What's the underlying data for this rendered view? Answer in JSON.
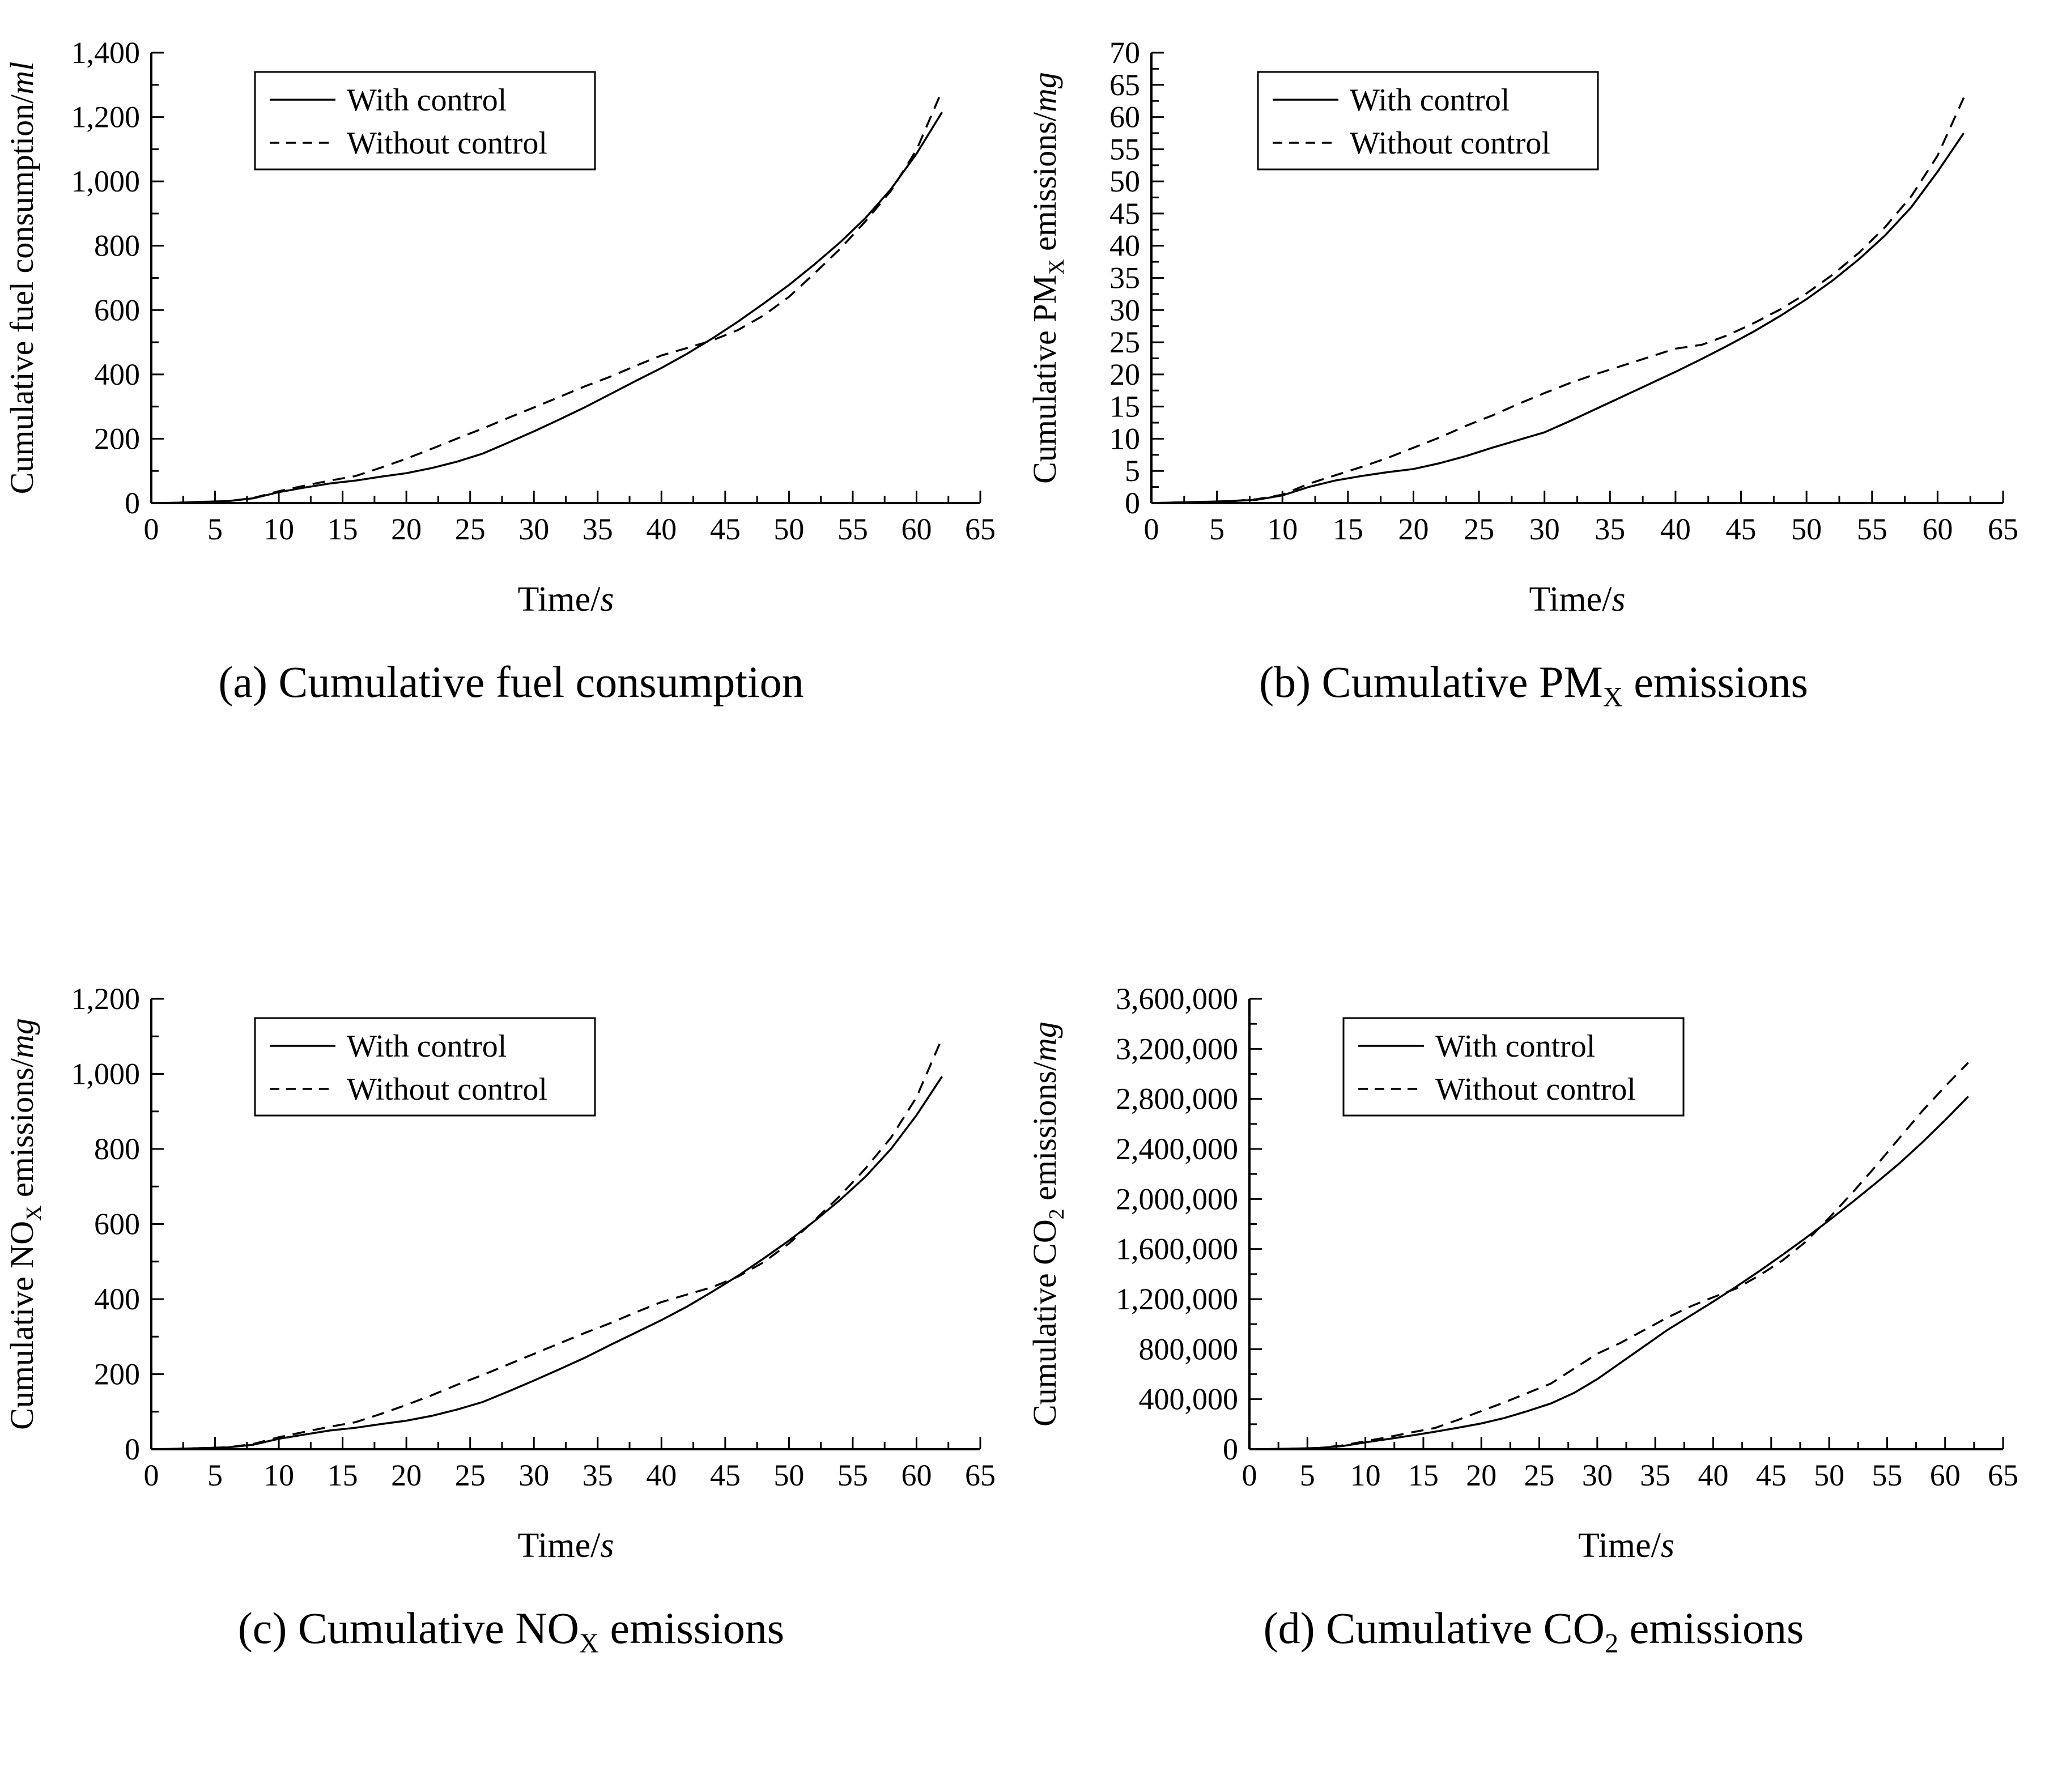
{
  "colors": {
    "line": "#000000",
    "background": "#ffffff"
  },
  "legend": {
    "with_control": "With control",
    "without_control": "Without control"
  },
  "chart_data": [
    {
      "id": "a",
      "type": "line",
      "caption": {
        "pre": "(a) Cumulative fuel consumption",
        "sub": "",
        "post": ""
      },
      "ylabel": {
        "pre": "Cumulative fuel consumption/",
        "sub": "",
        "post": "",
        "unit": "ml"
      },
      "xlabel": {
        "pre": "Time/",
        "unit": "s"
      },
      "xlim": [
        0,
        65
      ],
      "ylim": [
        0,
        1400
      ],
      "xticks": {
        "major_step": 5,
        "minor_step": 2.5,
        "labels": [
          "0",
          "5",
          "10",
          "15",
          "20",
          "25",
          "30",
          "35",
          "40",
          "45",
          "50",
          "55",
          "60",
          "65"
        ]
      },
      "yticks": {
        "major_step": 200,
        "minor_step": 100,
        "labels": [
          "0",
          "200",
          "400",
          "600",
          "800",
          "1,000",
          "1,200",
          "1,400"
        ]
      },
      "legend_position": "top-left-inside",
      "grid": false,
      "series": [
        {
          "name": "With control",
          "style": "solid",
          "x": [
            0,
            2,
            4,
            6,
            8,
            10,
            12,
            14,
            16,
            18,
            20,
            22,
            24,
            26,
            28,
            30,
            32,
            34,
            36,
            38,
            40,
            42,
            44,
            46,
            48,
            50,
            52,
            54,
            56,
            58,
            60,
            62
          ],
          "y": [
            0,
            1,
            4,
            6,
            15,
            34,
            48,
            61,
            70,
            82,
            93,
            109,
            129,
            154,
            188,
            223,
            260,
            298,
            339,
            380,
            420,
            464,
            512,
            564,
            620,
            678,
            742,
            810,
            886,
            976,
            1086,
            1215
          ]
        },
        {
          "name": "Without control",
          "style": "dashed",
          "x": [
            0,
            2,
            4,
            6,
            8,
            10,
            12,
            14,
            16,
            18,
            20,
            22,
            24,
            26,
            28,
            30,
            32,
            34,
            36,
            38,
            40,
            42,
            44,
            46,
            48,
            50,
            52,
            54,
            56,
            58,
            60,
            62
          ],
          "y": [
            0,
            1,
            4,
            6,
            16,
            37,
            54,
            70,
            84,
            110,
            138,
            169,
            201,
            232,
            265,
            297,
            330,
            363,
            393,
            427,
            459,
            482,
            506,
            538,
            583,
            641,
            714,
            790,
            876,
            971,
            1098,
            1282
          ]
        }
      ]
    },
    {
      "id": "b",
      "type": "line",
      "caption": {
        "pre": "(b) Cumulative PM",
        "sub": "X",
        "post": " emissions"
      },
      "ylabel": {
        "pre": "Cumulative PM",
        "sub": "X",
        "post": " emissions/",
        "unit": "mg"
      },
      "xlabel": {
        "pre": "Time/",
        "unit": "s"
      },
      "xlim": [
        0,
        65
      ],
      "ylim": [
        0,
        70
      ],
      "xticks": {
        "major_step": 5,
        "minor_step": 2.5,
        "labels": [
          "0",
          "5",
          "10",
          "15",
          "20",
          "25",
          "30",
          "35",
          "40",
          "45",
          "50",
          "55",
          "60",
          "65"
        ]
      },
      "yticks": {
        "major_step": 5,
        "minor_step": 2.5,
        "labels": [
          "0",
          "5",
          "10",
          "15",
          "20",
          "25",
          "30",
          "35",
          "40",
          "45",
          "50",
          "55",
          "60",
          "65",
          "70"
        ]
      },
      "legend_position": "top-left-inside",
      "grid": false,
      "series": [
        {
          "name": "With control",
          "style": "solid",
          "x": [
            0,
            2,
            4,
            6,
            8,
            10,
            12,
            14,
            16,
            18,
            20,
            22,
            24,
            26,
            28,
            30,
            32,
            34,
            36,
            38,
            40,
            42,
            44,
            46,
            48,
            50,
            52,
            54,
            56,
            58,
            60,
            62
          ],
          "y": [
            0,
            0.1,
            0.2,
            0.3,
            0.5,
            1.2,
            2.5,
            3.5,
            4.2,
            4.8,
            5.3,
            6.2,
            7.3,
            8.6,
            9.8,
            11.0,
            12.8,
            14.7,
            16.6,
            18.5,
            20.4,
            22.4,
            24.5,
            26.7,
            29.1,
            31.7,
            34.6,
            37.9,
            41.6,
            46.0,
            51.5,
            57.5
          ]
        },
        {
          "name": "Without control",
          "style": "dashed",
          "x": [
            0,
            2,
            4,
            6,
            8,
            10,
            12,
            14,
            16,
            18,
            20,
            22,
            24,
            26,
            28,
            30,
            32,
            34,
            36,
            38,
            40,
            42,
            44,
            46,
            48,
            50,
            52,
            54,
            56,
            58,
            60,
            62
          ],
          "y": [
            0,
            0.1,
            0.2,
            0.3,
            0.6,
            1.3,
            3.0,
            4.3,
            5.6,
            7.0,
            8.6,
            10.2,
            12.0,
            13.6,
            15.4,
            17.1,
            18.7,
            20.1,
            21.4,
            22.7,
            24.0,
            24.6,
            26.1,
            28.0,
            30.1,
            32.6,
            35.5,
            38.9,
            42.9,
            47.7,
            54.0,
            63.0
          ]
        }
      ]
    },
    {
      "id": "c",
      "type": "line",
      "caption": {
        "pre": "(c) Cumulative NO",
        "sub": "X",
        "post": " emissions"
      },
      "ylabel": {
        "pre": "Cumulative NO",
        "sub": "X",
        "post": " emissions/",
        "unit": "mg"
      },
      "xlabel": {
        "pre": "Time/",
        "unit": "s"
      },
      "xlim": [
        0,
        65
      ],
      "ylim": [
        0,
        1200
      ],
      "xticks": {
        "major_step": 5,
        "minor_step": 2.5,
        "labels": [
          "0",
          "5",
          "10",
          "15",
          "20",
          "25",
          "30",
          "35",
          "40",
          "45",
          "50",
          "55",
          "60",
          "65"
        ]
      },
      "yticks": {
        "major_step": 200,
        "minor_step": 100,
        "labels": [
          "0",
          "200",
          "400",
          "600",
          "800",
          "1,000",
          "1,200"
        ]
      },
      "legend_position": "top-left-inside",
      "grid": false,
      "series": [
        {
          "name": "With control",
          "style": "solid",
          "x": [
            0,
            2,
            4,
            6,
            8,
            10,
            12,
            14,
            16,
            18,
            20,
            22,
            24,
            26,
            28,
            30,
            32,
            34,
            36,
            38,
            40,
            42,
            44,
            46,
            48,
            50,
            52,
            54,
            56,
            58,
            60,
            62
          ],
          "y": [
            0,
            1,
            3,
            5,
            12,
            28,
            39,
            50,
            57,
            67,
            76,
            89,
            106,
            126,
            154,
            183,
            213,
            244,
            278,
            311,
            344,
            380,
            420,
            462,
            508,
            556,
            608,
            664,
            726,
            800,
            890,
            993
          ]
        },
        {
          "name": "Without control",
          "style": "dashed",
          "x": [
            0,
            2,
            4,
            6,
            8,
            10,
            12,
            14,
            16,
            18,
            20,
            22,
            24,
            26,
            28,
            30,
            32,
            34,
            36,
            38,
            40,
            42,
            44,
            46,
            48,
            50,
            52,
            54,
            56,
            58,
            60,
            62
          ],
          "y": [
            0,
            1,
            3,
            5,
            14,
            32,
            46,
            60,
            72,
            94,
            118,
            144,
            172,
            198,
            226,
            254,
            282,
            310,
            336,
            365,
            392,
            412,
            432,
            460,
            498,
            548,
            610,
            675,
            748,
            830,
            938,
            1095
          ]
        }
      ]
    },
    {
      "id": "d",
      "type": "line",
      "caption": {
        "pre": "(d) Cumulative CO",
        "sub": "2",
        "post": " emissions"
      },
      "ylabel": {
        "pre": "Cumulative CO",
        "sub": "2",
        "post": " emissions/",
        "unit": "mg"
      },
      "xlabel": {
        "pre": "Time/",
        "unit": "s"
      },
      "xlim": [
        0,
        65
      ],
      "ylim": [
        0,
        3600000
      ],
      "xticks": {
        "major_step": 5,
        "minor_step": 2.5,
        "labels": [
          "0",
          "5",
          "10",
          "15",
          "20",
          "25",
          "30",
          "35",
          "40",
          "45",
          "50",
          "55",
          "60",
          "65"
        ]
      },
      "yticks": {
        "major_step": 400000,
        "minor_step": 200000,
        "labels": [
          "0",
          "400,000",
          "800,000",
          "1,200,000",
          "1,600,000",
          "2,000,000",
          "2,400,000",
          "2,800,000",
          "3,200,000",
          "3,600,000"
        ]
      },
      "legend_position": "top-left-inside",
      "grid": false,
      "series": [
        {
          "name": "With control",
          "style": "solid",
          "x": [
            0,
            2,
            4,
            6,
            8,
            10,
            12,
            14,
            16,
            18,
            20,
            22,
            24,
            26,
            28,
            30,
            32,
            34,
            36,
            38,
            40,
            42,
            44,
            46,
            48,
            50,
            52,
            54,
            56,
            58,
            60,
            62
          ],
          "y": [
            0,
            2000,
            5000,
            10000,
            25000,
            55000,
            82000,
            110000,
            140000,
            172000,
            206000,
            250000,
            305000,
            366000,
            450000,
            560000,
            690000,
            820000,
            950000,
            1065000,
            1180000,
            1300000,
            1425000,
            1555000,
            1690000,
            1830000,
            1975000,
            2125000,
            2280000,
            2450000,
            2630000,
            2820000
          ]
        },
        {
          "name": "Without control",
          "style": "dashed",
          "x": [
            0,
            2,
            4,
            6,
            8,
            10,
            12,
            14,
            16,
            18,
            20,
            22,
            24,
            26,
            28,
            30,
            32,
            34,
            36,
            38,
            40,
            42,
            44,
            46,
            48,
            50,
            52,
            54,
            56,
            58,
            60,
            62
          ],
          "y": [
            0,
            2000,
            5000,
            10000,
            30000,
            64000,
            98000,
            135000,
            170000,
            235000,
            305000,
            375000,
            450000,
            525000,
            645000,
            763000,
            850000,
            950000,
            1050000,
            1140000,
            1215000,
            1285000,
            1390000,
            1510000,
            1660000,
            1850000,
            2050000,
            2260000,
            2480000,
            2700000,
            2900000,
            3090000
          ]
        }
      ]
    }
  ]
}
